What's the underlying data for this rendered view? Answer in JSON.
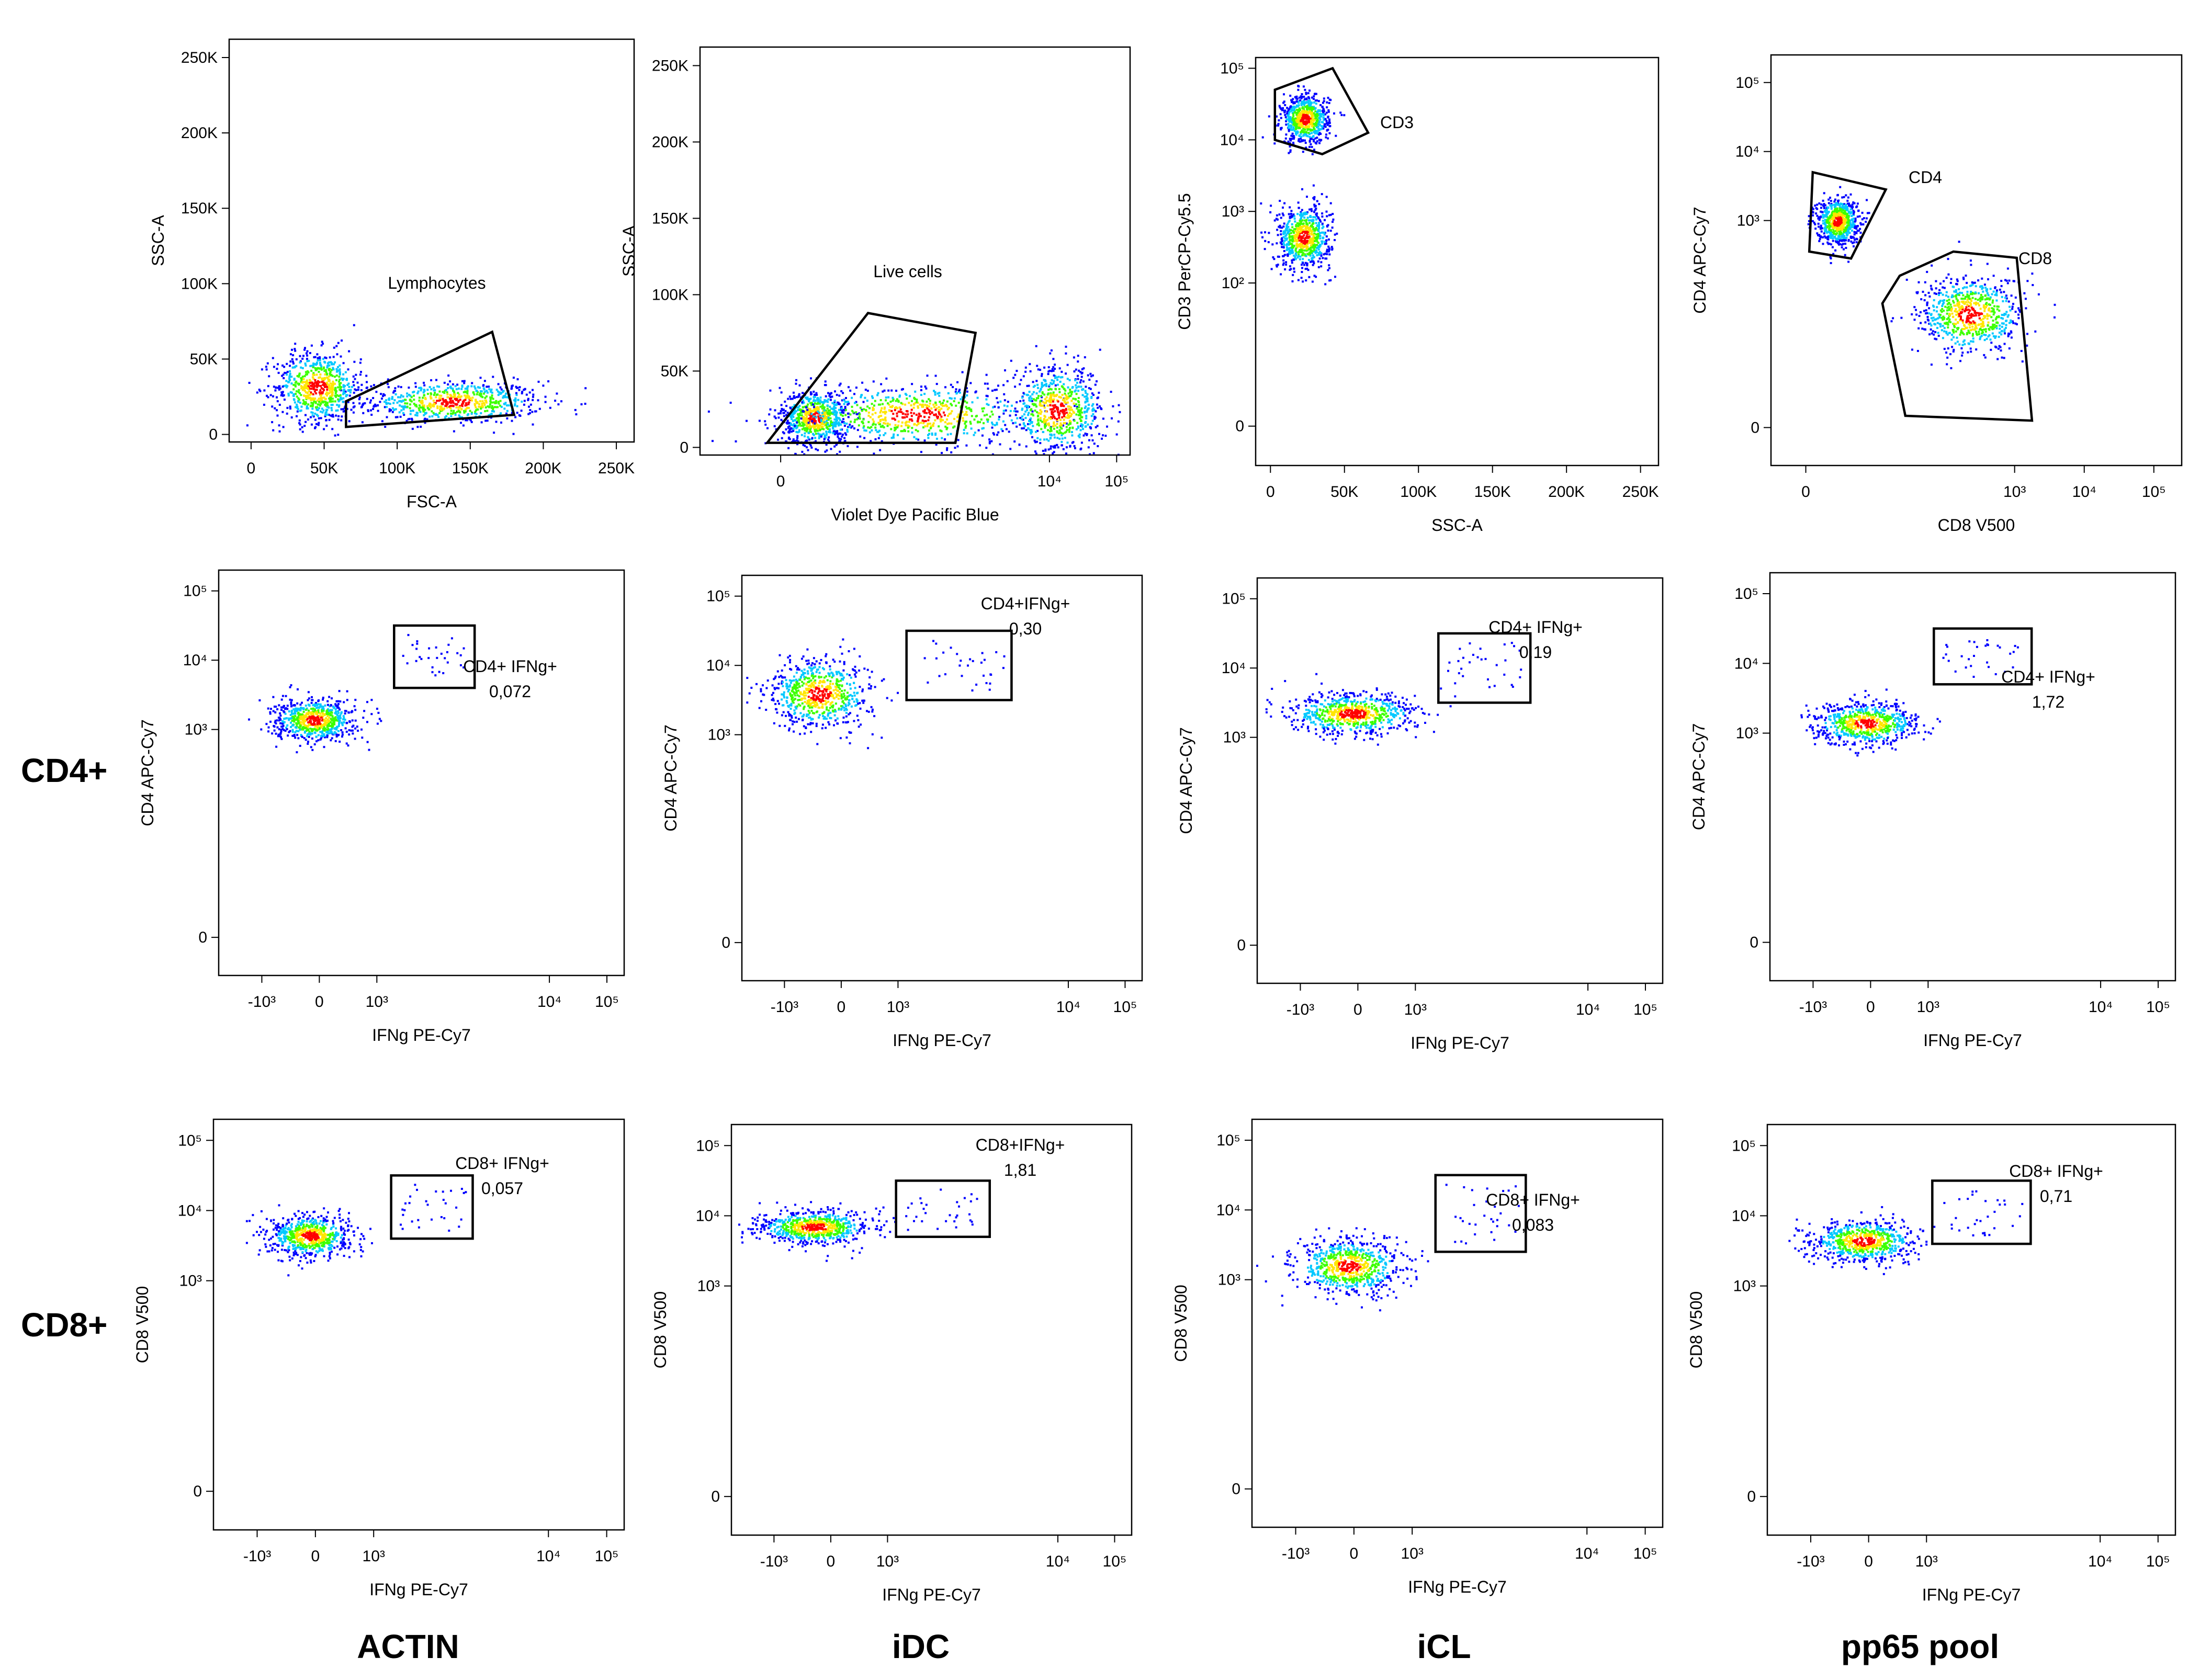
{
  "colors": {
    "dot_low": "#0000ff",
    "dot_mid": "#00c8ff",
    "dot_mid2": "#3cff00",
    "dot_high": "#ffe600",
    "dot_peak": "#ff0000"
  },
  "row_labels": [
    "CD4+",
    "CD8+"
  ],
  "column_labels": [
    "ACTIN",
    "iDC",
    "iCL",
    "pp65 pool"
  ],
  "chart_data": [
    {
      "type": "scatter",
      "panel": "gating-lymphocytes",
      "xlabel": "FSC-A",
      "ylabel": "SSC-A",
      "xlim": [
        -15000,
        262144
      ],
      "ylim": [
        -5000,
        262144
      ],
      "x_ticks": [
        {
          "v": 0,
          "t": "0"
        },
        {
          "v": 50000,
          "t": "50K"
        },
        {
          "v": 100000,
          "t": "100K"
        },
        {
          "v": 150000,
          "t": "150K"
        },
        {
          "v": 200000,
          "t": "200K"
        },
        {
          "v": 250000,
          "t": "250K"
        }
      ],
      "y_ticks": [
        {
          "v": 0,
          "t": "0"
        },
        {
          "v": 50000,
          "t": "50K"
        },
        {
          "v": 100000,
          "t": "100K"
        },
        {
          "v": 150000,
          "t": "150K"
        },
        {
          "v": 200000,
          "t": "200K"
        },
        {
          "v": 250000,
          "t": "250K"
        }
      ],
      "gates": [
        {
          "label": "Lymphocytes",
          "polygon": [
            [
              65000,
              5000
            ],
            [
              180000,
              13000
            ],
            [
              165000,
              68000
            ],
            [
              65000,
              22000
            ]
          ]
        }
      ],
      "clusters": [
        {
          "cx": 138000,
          "cy": 22000,
          "sx": 30000,
          "sy": 7000
        },
        {
          "cx": 45000,
          "cy": 32000,
          "sx": 15000,
          "sy": 12000
        }
      ]
    },
    {
      "type": "scatter",
      "panel": "gating-live-cells",
      "xlabel": "Violet Dye Pacific Blue",
      "ylabel": "SSC-A",
      "xlim": [
        -1.2,
        5.2
      ],
      "ylim": [
        -5000,
        262144
      ],
      "x_ticks": [
        {
          "v": 0,
          "t": "0"
        },
        {
          "v": 4,
          "t": "10⁴"
        },
        {
          "v": 5,
          "t": "10⁵"
        }
      ],
      "y_ticks": [
        {
          "v": 0,
          "t": "0"
        },
        {
          "v": 50000,
          "t": "50K"
        },
        {
          "v": 100000,
          "t": "100K"
        },
        {
          "v": 150000,
          "t": "150K"
        },
        {
          "v": 200000,
          "t": "200K"
        },
        {
          "v": 250000,
          "t": "250K"
        }
      ],
      "gates": [
        {
          "label": "Live cells",
          "polygon": [
            [
              -0.2,
              3000
            ],
            [
              1.3,
              88000
            ],
            [
              2.9,
              75000
            ],
            [
              2.6,
              3000
            ]
          ]
        }
      ],
      "clusters": [
        {
          "cx": 0.5,
          "cy": 20000,
          "sx": 0.25,
          "sy": 9000
        },
        {
          "cx": 2.0,
          "cy": 22000,
          "sx": 1.0,
          "sy": 10000
        },
        {
          "cx": 4.1,
          "cy": 25000,
          "sx": 0.35,
          "sy": 14000
        }
      ]
    },
    {
      "type": "scatter",
      "panel": "gating-cd3",
      "xlabel": "SSC-A",
      "ylabel": "CD3 PerCP-Cy5.5",
      "xlim": [
        -10000,
        262144
      ],
      "ylim": [
        -0.55,
        5.15
      ],
      "x_ticks": [
        {
          "v": 0,
          "t": "0"
        },
        {
          "v": 50000,
          "t": "50K"
        },
        {
          "v": 100000,
          "t": "100K"
        },
        {
          "v": 150000,
          "t": "150K"
        },
        {
          "v": 200000,
          "t": "200K"
        },
        {
          "v": 250000,
          "t": "250K"
        }
      ],
      "y_ticks": [
        {
          "v": 0,
          "t": "0"
        },
        {
          "v": 2,
          "t": "10²"
        },
        {
          "v": 3,
          "t": "10³"
        },
        {
          "v": 4,
          "t": "10⁴"
        },
        {
          "v": 5,
          "t": "10⁵"
        }
      ],
      "gates": [
        {
          "label": "CD3",
          "polygon": [
            [
              3000,
              4.7
            ],
            [
              42000,
              5.0
            ],
            [
              66000,
              4.1
            ],
            [
              35000,
              3.8
            ],
            [
              3000,
              4.0
            ]
          ]
        }
      ],
      "clusters": [
        {
          "cx": 23000,
          "cy": 4.3,
          "sx": 8000,
          "sy": 0.17
        },
        {
          "cx": 22000,
          "cy": 2.65,
          "sx": 9000,
          "sy": 0.22
        }
      ]
    },
    {
      "type": "scatter",
      "panel": "gating-cd4-cd8",
      "xlabel": "CD8 V500",
      "ylabel": "CD4 APC-Cy7",
      "xlim": [
        -0.5,
        5.4
      ],
      "ylim": [
        -0.55,
        5.4
      ],
      "x_ticks": [
        {
          "v": 0,
          "t": "0"
        },
        {
          "v": 3,
          "t": "10³"
        },
        {
          "v": 4,
          "t": "10⁴"
        },
        {
          "v": 5,
          "t": "10⁵"
        }
      ],
      "y_ticks": [
        {
          "v": 0,
          "t": "0"
        },
        {
          "v": 3,
          "t": "10³"
        },
        {
          "v": 4,
          "t": "10⁴"
        },
        {
          "v": 5,
          "t": "10⁵"
        }
      ],
      "gates": [
        {
          "label": "CD4",
          "polygon": [
            [
              0.1,
              3.7
            ],
            [
              1.15,
              3.45
            ],
            [
              0.65,
              2.45
            ],
            [
              0.05,
              2.55
            ]
          ]
        },
        {
          "label": "CD8",
          "polygon": [
            [
              1.35,
              2.2
            ],
            [
              2.12,
              2.55
            ],
            [
              3.03,
              2.46
            ],
            [
              3.25,
              0.1
            ],
            [
              1.43,
              0.17
            ],
            [
              1.1,
              1.8
            ]
          ]
        }
      ],
      "clusters": [
        {
          "cx": 0.45,
          "cy": 3.0,
          "sx": 0.15,
          "sy": 0.17
        },
        {
          "cx": 2.35,
          "cy": 1.65,
          "sx": 0.38,
          "sy": 0.28
        }
      ]
    },
    {
      "type": "scatter",
      "panel": "cd4-actin",
      "xlabel": "IFNg PE-Cy7",
      "ylabel": "CD4 APC-Cy7",
      "xlim": [
        -1.75,
        5.3
      ],
      "ylim": [
        -0.55,
        5.3
      ],
      "x_ticks": [
        {
          "v": -1,
          "t": "-10³"
        },
        {
          "v": 0,
          "t": "0"
        },
        {
          "v": 1,
          "t": "10³"
        },
        {
          "v": 4,
          "t": "10⁴"
        },
        {
          "v": 5,
          "t": "10⁵"
        }
      ],
      "y_ticks": [
        {
          "v": 0,
          "t": "0"
        },
        {
          "v": 3,
          "t": "10³"
        },
        {
          "v": 4,
          "t": "10⁴"
        },
        {
          "v": 5,
          "t": "10⁵"
        }
      ],
      "gates": [
        {
          "label": "CD4+ IFNg+",
          "value": "0,072",
          "rect": [
            1.3,
            4.5,
            2.7,
            3.6
          ]
        }
      ],
      "clusters": [
        {
          "cx": -0.1,
          "cy": 3.15,
          "sx": 0.35,
          "sy": 0.15
        }
      ]
    },
    {
      "type": "scatter",
      "panel": "cd4-idc",
      "xlabel": "IFNg PE-Cy7",
      "ylabel": "CD4 APC-Cy7",
      "xlim": [
        -1.75,
        5.3
      ],
      "ylim": [
        -0.55,
        5.3
      ],
      "x_ticks": [
        {
          "v": -1,
          "t": "-10³"
        },
        {
          "v": 0,
          "t": "0"
        },
        {
          "v": 1,
          "t": "10³"
        },
        {
          "v": 4,
          "t": "10⁴"
        },
        {
          "v": 5,
          "t": "10⁵"
        }
      ],
      "y_ticks": [
        {
          "v": 0,
          "t": "0"
        },
        {
          "v": 3,
          "t": "10³"
        },
        {
          "v": 4,
          "t": "10⁴"
        },
        {
          "v": 5,
          "t": "10⁵"
        }
      ],
      "gates": [
        {
          "label": "CD4+IFNg+",
          "value": "0,30",
          "rect": [
            1.15,
            4.5,
            3.0,
            3.5
          ]
        }
      ],
      "clusters": [
        {
          "cx": -0.4,
          "cy": 3.6,
          "sx": 0.45,
          "sy": 0.25
        }
      ]
    },
    {
      "type": "scatter",
      "panel": "cd4-icl",
      "xlabel": "IFNg PE-Cy7",
      "ylabel": "CD4 APC-Cy7",
      "xlim": [
        -1.75,
        5.3
      ],
      "ylim": [
        -0.55,
        5.3
      ],
      "x_ticks": [
        {
          "v": -1,
          "t": "-10³"
        },
        {
          "v": 0,
          "t": "0"
        },
        {
          "v": 1,
          "t": "10³"
        },
        {
          "v": 4,
          "t": "10⁴"
        },
        {
          "v": 5,
          "t": "10⁵"
        }
      ],
      "y_ticks": [
        {
          "v": 0,
          "t": "0"
        },
        {
          "v": 3,
          "t": "10³"
        },
        {
          "v": 4,
          "t": "10⁴"
        },
        {
          "v": 5,
          "t": "10⁵"
        }
      ],
      "gates": [
        {
          "label": "CD4+ IFNg+",
          "value": "0,19",
          "rect": [
            1.4,
            4.5,
            3.0,
            3.5
          ]
        }
      ],
      "clusters": [
        {
          "cx": -0.1,
          "cy": 3.35,
          "sx": 0.55,
          "sy": 0.15
        }
      ]
    },
    {
      "type": "scatter",
      "panel": "cd4-pp65",
      "xlabel": "IFNg PE-Cy7",
      "ylabel": "CD4 APC-Cy7",
      "xlim": [
        -1.75,
        5.3
      ],
      "ylim": [
        -0.55,
        5.3
      ],
      "x_ticks": [
        {
          "v": -1,
          "t": "-10³"
        },
        {
          "v": 0,
          "t": "0"
        },
        {
          "v": 1,
          "t": "10³"
        },
        {
          "v": 4,
          "t": "10⁴"
        },
        {
          "v": 5,
          "t": "10⁵"
        }
      ],
      "y_ticks": [
        {
          "v": 0,
          "t": "0"
        },
        {
          "v": 3,
          "t": "10³"
        },
        {
          "v": 4,
          "t": "10⁴"
        },
        {
          "v": 5,
          "t": "10⁵"
        }
      ],
      "gates": [
        {
          "label": "CD4+ IFNg+",
          "value": "1,72",
          "rect": [
            1.1,
            4.5,
            2.8,
            3.7
          ]
        }
      ],
      "clusters": [
        {
          "cx": -0.1,
          "cy": 3.15,
          "sx": 0.45,
          "sy": 0.15
        }
      ]
    },
    {
      "type": "scatter",
      "panel": "cd8-actin",
      "xlabel": "IFNg PE-Cy7",
      "ylabel": "CD8 V500",
      "xlim": [
        -1.75,
        5.3
      ],
      "ylim": [
        -0.55,
        5.3
      ],
      "x_ticks": [
        {
          "v": -1,
          "t": "-10³"
        },
        {
          "v": 0,
          "t": "0"
        },
        {
          "v": 1,
          "t": "10³"
        },
        {
          "v": 4,
          "t": "10⁴"
        },
        {
          "v": 5,
          "t": "10⁵"
        }
      ],
      "y_ticks": [
        {
          "v": 0,
          "t": "0"
        },
        {
          "v": 3,
          "t": "10³"
        },
        {
          "v": 4,
          "t": "10⁴"
        },
        {
          "v": 5,
          "t": "10⁵"
        }
      ],
      "gates": [
        {
          "label": "CD8+ IFNg+",
          "value": "0,057",
          "rect": [
            1.3,
            4.5,
            2.7,
            3.6
          ]
        }
      ],
      "clusters": [
        {
          "cx": -0.1,
          "cy": 3.65,
          "sx": 0.35,
          "sy": 0.15
        }
      ]
    },
    {
      "type": "scatter",
      "panel": "cd8-idc",
      "xlabel": "IFNg PE-Cy7",
      "ylabel": "CD8 V500",
      "xlim": [
        -1.75,
        5.3
      ],
      "ylim": [
        -0.55,
        5.3
      ],
      "x_ticks": [
        {
          "v": -1,
          "t": "-10³"
        },
        {
          "v": 0,
          "t": "0"
        },
        {
          "v": 1,
          "t": "10³"
        },
        {
          "v": 4,
          "t": "10⁴"
        },
        {
          "v": 5,
          "t": "10⁵"
        }
      ],
      "y_ticks": [
        {
          "v": 0,
          "t": "0"
        },
        {
          "v": 3,
          "t": "10³"
        },
        {
          "v": 4,
          "t": "10⁴"
        },
        {
          "v": 5,
          "t": "10⁵"
        }
      ],
      "gates": [
        {
          "label": "CD8+IFNg+",
          "value": "1,81",
          "rect": [
            1.15,
            4.5,
            2.8,
            3.7
          ]
        }
      ],
      "clusters": [
        {
          "cx": -0.3,
          "cy": 3.85,
          "sx": 0.5,
          "sy": 0.12
        }
      ]
    },
    {
      "type": "scatter",
      "panel": "cd8-icl",
      "xlabel": "IFNg PE-Cy7",
      "ylabel": "CD8 V500",
      "xlim": [
        -1.75,
        5.3
      ],
      "ylim": [
        -0.55,
        5.3
      ],
      "x_ticks": [
        {
          "v": -1,
          "t": "-10³"
        },
        {
          "v": 0,
          "t": "0"
        },
        {
          "v": 1,
          "t": "10³"
        },
        {
          "v": 4,
          "t": "10⁴"
        },
        {
          "v": 5,
          "t": "10⁵"
        }
      ],
      "y_ticks": [
        {
          "v": 0,
          "t": "0"
        },
        {
          "v": 3,
          "t": "10³"
        },
        {
          "v": 4,
          "t": "10⁴"
        },
        {
          "v": 5,
          "t": "10⁵"
        }
      ],
      "gates": [
        {
          "label": "CD8+ IFNg+",
          "value": "0,083",
          "rect": [
            1.4,
            4.5,
            2.95,
            3.4
          ]
        }
      ],
      "clusters": [
        {
          "cx": -0.1,
          "cy": 3.2,
          "sx": 0.45,
          "sy": 0.2
        }
      ]
    },
    {
      "type": "scatter",
      "panel": "cd8-pp65",
      "xlabel": "IFNg PE-Cy7",
      "ylabel": "CD8 V500",
      "xlim": [
        -1.75,
        5.3
      ],
      "ylim": [
        -0.55,
        5.3
      ],
      "x_ticks": [
        {
          "v": -1,
          "t": "-10³"
        },
        {
          "v": 0,
          "t": "0"
        },
        {
          "v": 1,
          "t": "10³"
        },
        {
          "v": 4,
          "t": "10⁴"
        },
        {
          "v": 5,
          "t": "10⁵"
        }
      ],
      "y_ticks": [
        {
          "v": 0,
          "t": "0"
        },
        {
          "v": 3,
          "t": "10³"
        },
        {
          "v": 4,
          "t": "10⁴"
        },
        {
          "v": 5,
          "t": "10⁵"
        }
      ],
      "gates": [
        {
          "label": "CD8+ IFNg+",
          "value": "0,71",
          "rect": [
            1.1,
            4.5,
            2.8,
            3.6
          ]
        }
      ],
      "clusters": [
        {
          "cx": -0.1,
          "cy": 3.65,
          "sx": 0.45,
          "sy": 0.15
        }
      ]
    }
  ]
}
